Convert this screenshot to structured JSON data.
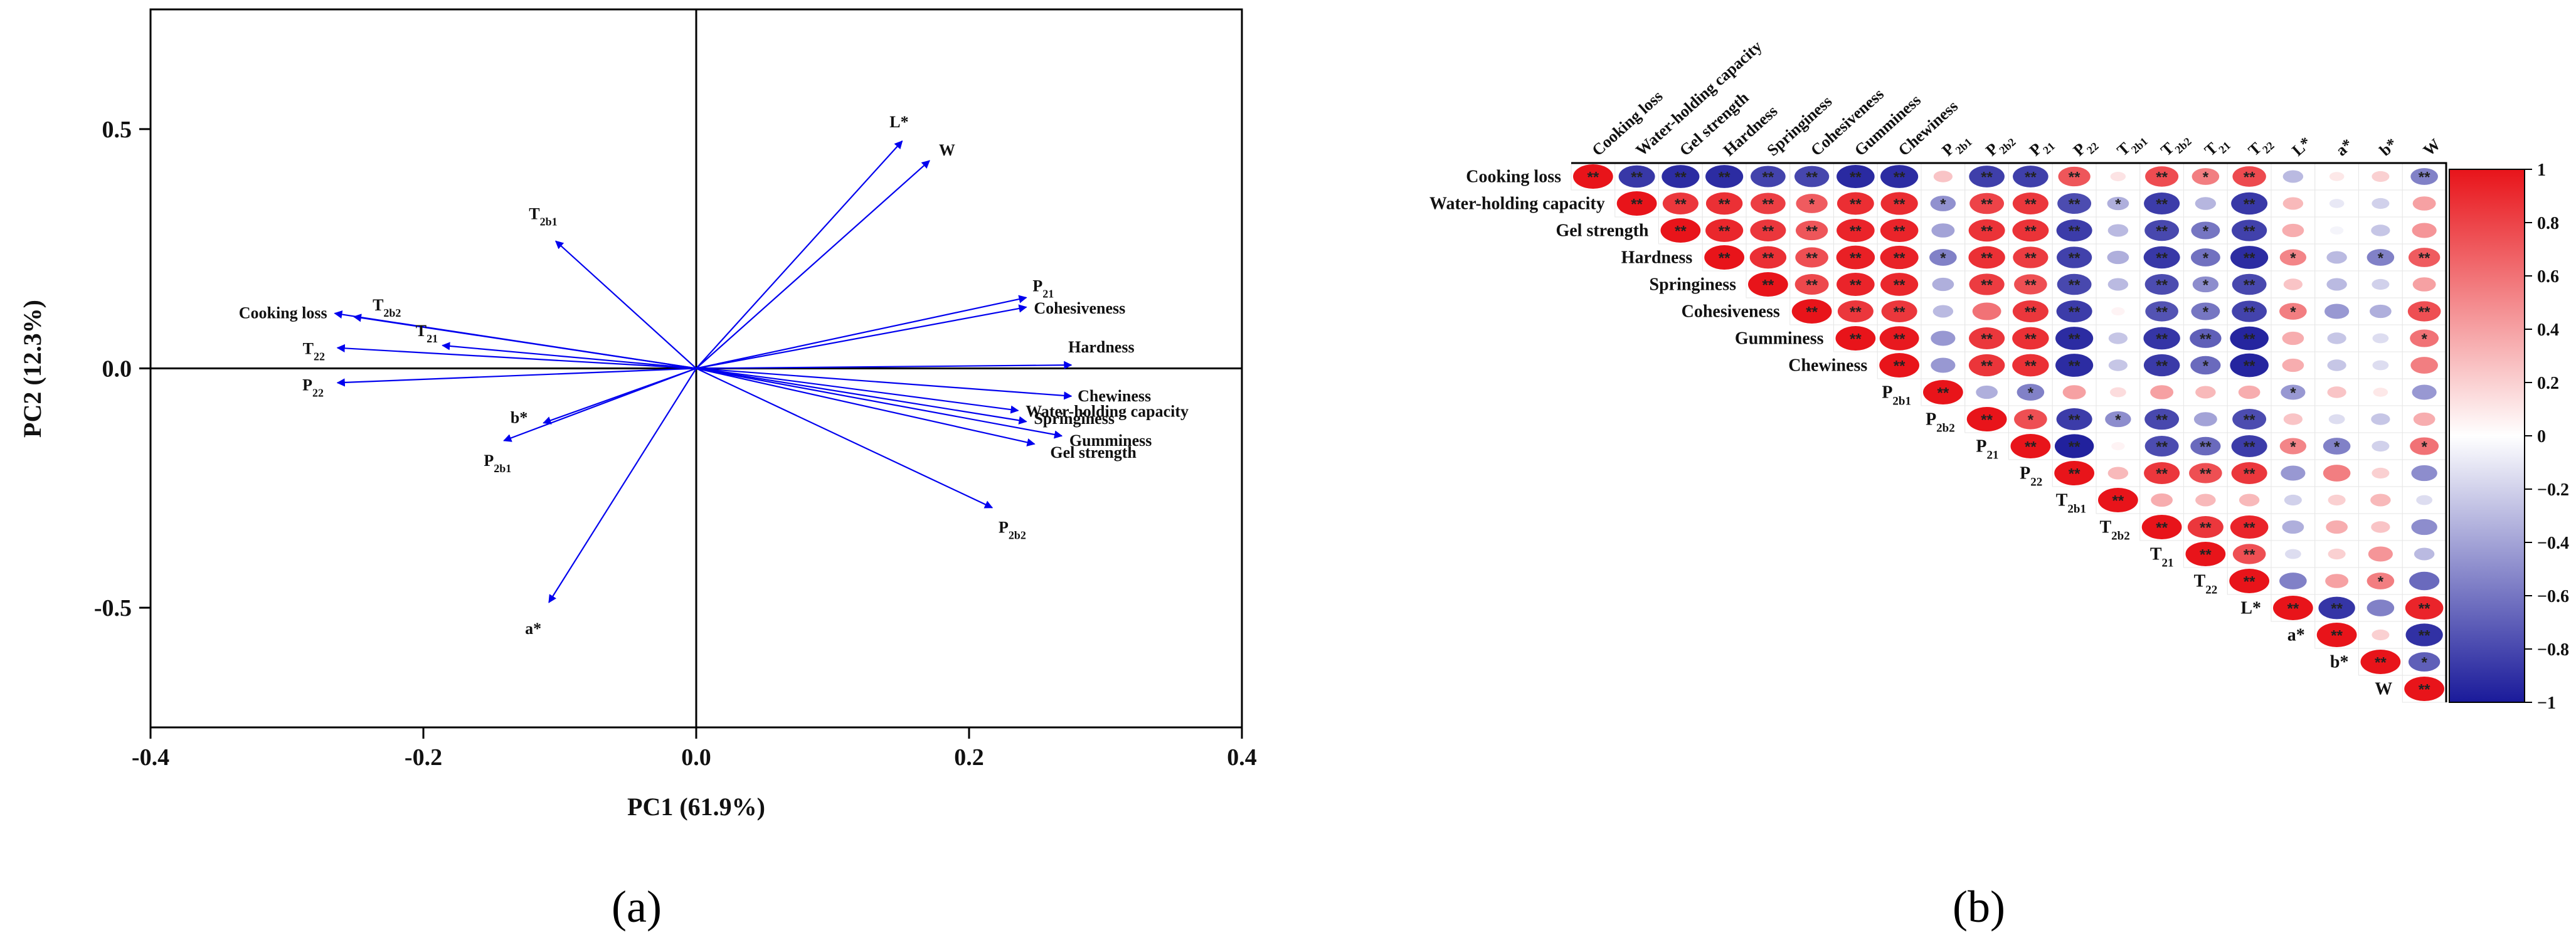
{
  "chart_data": [
    {
      "type": "biplot",
      "panel_label": "(a)",
      "xlabel": "PC1 (61.9%)",
      "ylabel": "PC2 (12.3%)",
      "xlim": [
        -0.4,
        0.4
      ],
      "ylim": [
        -0.75,
        0.75
      ],
      "xticks": [
        -0.4,
        -0.2,
        0.0,
        0.2,
        0.4
      ],
      "yticks": [
        -0.5,
        0.0,
        0.5
      ],
      "xtick_labels": [
        "-0.4",
        "-0.2",
        "0.0",
        "0.2",
        "0.4"
      ],
      "ytick_labels": [
        "-0.5",
        "0.0",
        "0.5"
      ],
      "arrow_color": "#0000ee",
      "vectors": [
        {
          "label": "L*",
          "base": "L*",
          "sub": "",
          "x": 0.151,
          "y": 0.475
        },
        {
          "label": "W",
          "base": "W",
          "sub": "",
          "x": 0.171,
          "y": 0.434
        },
        {
          "label": "T2b1",
          "base": "T",
          "sub": "2b1",
          "x": -0.103,
          "y": 0.266
        },
        {
          "label": "P21",
          "base": "P",
          "sub": "21",
          "x": 0.242,
          "y": 0.148
        },
        {
          "label": "Cohesiveness",
          "base": "Cohesiveness",
          "sub": "",
          "x": 0.242,
          "y": 0.128
        },
        {
          "label": "Hardness",
          "base": "Hardness",
          "sub": "",
          "x": 0.275,
          "y": 0.007
        },
        {
          "label": "Chewiness",
          "base": "Chewiness",
          "sub": "",
          "x": 0.275,
          "y": -0.058
        },
        {
          "label": "Water-holding capacity",
          "base": "Water-holding capacity",
          "sub": "",
          "x": 0.236,
          "y": -0.088
        },
        {
          "label": "Springiness",
          "base": "Springiness",
          "sub": "",
          "x": 0.242,
          "y": -0.111
        },
        {
          "label": "Gumminess",
          "base": "Gumminess",
          "sub": "",
          "x": 0.268,
          "y": -0.141
        },
        {
          "label": "Gel strength",
          "base": "Gel strength",
          "sub": "",
          "x": 0.248,
          "y": -0.158
        },
        {
          "label": "P2b2",
          "base": "P",
          "sub": "2b2",
          "x": 0.217,
          "y": -0.291
        },
        {
          "label": "Cooking loss",
          "base": "Cooking loss",
          "sub": "",
          "x": -0.265,
          "y": 0.115
        },
        {
          "label": "T2b2",
          "base": "T",
          "sub": "2b2",
          "x": -0.251,
          "y": 0.108
        },
        {
          "label": "T21",
          "base": "T",
          "sub": "21",
          "x": -0.186,
          "y": 0.048
        },
        {
          "label": "T22",
          "base": "T",
          "sub": "22",
          "x": -0.263,
          "y": 0.043
        },
        {
          "label": "P22",
          "base": "P",
          "sub": "22",
          "x": -0.263,
          "y": -0.03
        },
        {
          "label": "b*",
          "base": "b*",
          "sub": "",
          "x": -0.112,
          "y": -0.114
        },
        {
          "label": "P2b1",
          "base": "P",
          "sub": "2b1",
          "x": -0.141,
          "y": -0.151
        },
        {
          "label": "a*",
          "base": "a*",
          "sub": "",
          "x": -0.108,
          "y": -0.489
        }
      ]
    },
    {
      "type": "heatmap",
      "panel_label": "(b)",
      "variables": [
        {
          "base": "Cooking loss",
          "sub": ""
        },
        {
          "base": "Water-holding capacity",
          "sub": ""
        },
        {
          "base": "Gel strength",
          "sub": ""
        },
        {
          "base": "Hardness",
          "sub": ""
        },
        {
          "base": "Springiness",
          "sub": ""
        },
        {
          "base": "Cohesiveness",
          "sub": ""
        },
        {
          "base": "Gumminess",
          "sub": ""
        },
        {
          "base": "Chewiness",
          "sub": ""
        },
        {
          "base": "P",
          "sub": "2b1"
        },
        {
          "base": "P",
          "sub": "2b2"
        },
        {
          "base": "P",
          "sub": "21"
        },
        {
          "base": "P",
          "sub": "22"
        },
        {
          "base": "T",
          "sub": "2b1"
        },
        {
          "base": "T",
          "sub": "2b2"
        },
        {
          "base": "T",
          "sub": "21"
        },
        {
          "base": "T",
          "sub": "22"
        },
        {
          "base": "L*",
          "sub": ""
        },
        {
          "base": "a*",
          "sub": ""
        },
        {
          "base": "b*",
          "sub": ""
        },
        {
          "base": "W",
          "sub": ""
        }
      ],
      "colorbar": {
        "min": -1,
        "max": 1,
        "ticks": [
          1,
          0.8,
          0.6,
          0.4,
          0.2,
          0,
          -0.2,
          -0.4,
          -0.6,
          -0.8,
          -1
        ],
        "tick_labels": [
          "1",
          "0.8",
          "0.6",
          "0.4",
          "0.2",
          "0",
          "−0.2",
          "−0.4",
          "−0.6",
          "−0.8",
          "−1"
        ],
        "positive_color": "#e8141a",
        "negative_color": "#1a1a9a",
        "neutral_color": "#ffffff"
      },
      "rows": [
        {
          "values": [
            1,
            -0.87,
            -0.92,
            -0.92,
            -0.82,
            -0.81,
            -0.93,
            -0.92,
            0.25,
            -0.84,
            -0.84,
            0.72,
            0.12,
            0.76,
            0.55,
            0.77,
            -0.3,
            0.1,
            0.2,
            -0.55
          ],
          "sig": [
            "**",
            "**",
            "**",
            "**",
            "**",
            "**",
            "**",
            "**",
            "",
            "**",
            "**",
            "**",
            "",
            "**",
            "*",
            "**",
            "",
            "",
            "",
            "**"
          ]
        },
        {
          "values": [
            1,
            0.85,
            0.88,
            0.82,
            0.7,
            0.89,
            0.9,
            -0.48,
            0.8,
            0.85,
            -0.78,
            -0.35,
            -0.85,
            -0.32,
            -0.87,
            0.3,
            -0.1,
            -0.2,
            0.4
          ],
          "sig": [
            "**",
            "**",
            "**",
            "**",
            "*",
            "**",
            "**",
            "*",
            "**",
            "**",
            "**",
            "*",
            "**",
            "",
            "**",
            "",
            "",
            "",
            ""
          ]
        },
        {
          "values": [
            1,
            0.92,
            0.85,
            0.72,
            0.93,
            0.93,
            -0.4,
            0.87,
            0.87,
            -0.85,
            -0.3,
            -0.8,
            -0.6,
            -0.83,
            0.35,
            -0.05,
            -0.25,
            0.45
          ],
          "sig": [
            "**",
            "**",
            "**",
            "**",
            "**",
            "**",
            "",
            "**",
            "**",
            "**",
            "",
            "**",
            "*",
            "**",
            "",
            "",
            "",
            ""
          ]
        },
        {
          "values": [
            1,
            0.88,
            0.75,
            0.95,
            0.94,
            -0.55,
            0.88,
            0.83,
            -0.83,
            -0.35,
            -0.87,
            -0.62,
            -0.92,
            0.52,
            -0.3,
            -0.55,
            0.7
          ],
          "sig": [
            "**",
            "**",
            "**",
            "**",
            "**",
            "*",
            "**",
            "**",
            "**",
            "",
            "**",
            "*",
            "**",
            "*",
            "",
            "*",
            "**"
          ]
        },
        {
          "values": [
            1,
            0.78,
            0.93,
            0.92,
            -0.35,
            0.83,
            0.75,
            -0.8,
            -0.3,
            -0.78,
            -0.5,
            -0.8,
            0.25,
            -0.3,
            -0.2,
            0.4
          ],
          "sig": [
            "**",
            "**",
            "**",
            "**",
            "",
            "**",
            "**",
            "**",
            "",
            "**",
            "*",
            "**",
            "",
            "",
            "",
            ""
          ]
        },
        {
          "values": [
            1,
            0.85,
            0.85,
            -0.3,
            0.6,
            0.85,
            -0.85,
            0.05,
            -0.75,
            -0.6,
            -0.82,
            0.55,
            -0.45,
            -0.35,
            0.75
          ],
          "sig": [
            "**",
            "**",
            "**",
            "",
            "",
            "**",
            "**",
            "",
            "**",
            "*",
            "**",
            "*",
            "",
            "",
            "**"
          ]
        },
        {
          "values": [
            1,
            0.98,
            -0.45,
            0.85,
            0.88,
            -0.92,
            -0.25,
            -0.88,
            -0.7,
            -0.95,
            0.35,
            -0.25,
            -0.15,
            0.6
          ],
          "sig": [
            "**",
            "**",
            "",
            "**",
            "**",
            "**",
            "",
            "**",
            "**",
            "**",
            "",
            "",
            "",
            "*"
          ]
        },
        {
          "values": [
            1,
            -0.45,
            0.86,
            0.88,
            -0.92,
            -0.25,
            -0.86,
            -0.65,
            -0.95,
            0.35,
            -0.25,
            -0.15,
            0.55
          ],
          "sig": [
            "**",
            "",
            "**",
            "**",
            "**",
            "",
            "**",
            "*",
            "**",
            "",
            "",
            "",
            ""
          ]
        },
        {
          "values": [
            1,
            -0.35,
            -0.55,
            0.4,
            0.15,
            0.4,
            0.3,
            0.35,
            -0.45,
            0.25,
            0.1,
            -0.45
          ],
          "sig": [
            "**",
            "",
            "*",
            "",
            "",
            "",
            "",
            "",
            "*",
            "",
            "",
            ""
          ]
        },
        {
          "values": [
            1,
            0.75,
            -0.85,
            -0.5,
            -0.8,
            -0.4,
            -0.78,
            0.25,
            -0.15,
            -0.25,
            0.35
          ],
          "sig": [
            "**",
            "*",
            "**",
            "*",
            "**",
            "",
            "**",
            "",
            "",
            "",
            ""
          ]
        },
        {
          "values": [
            1,
            -0.97,
            0.05,
            -0.78,
            -0.65,
            -0.85,
            0.52,
            -0.55,
            -0.2,
            0.6
          ],
          "sig": [
            "**",
            "**",
            "",
            "**",
            "**",
            "**",
            "*",
            "*",
            "",
            "*"
          ]
        },
        {
          "values": [
            1,
            0.3,
            0.85,
            0.75,
            0.85,
            -0.45,
            0.55,
            0.2,
            -0.5
          ],
          "sig": [
            "**",
            "",
            "**",
            "**",
            "**",
            "",
            "",
            "",
            ""
          ]
        },
        {
          "values": [
            1,
            0.35,
            0.3,
            0.3,
            -0.2,
            0.2,
            0.3,
            -0.15
          ],
          "sig": [
            "**",
            "",
            "",
            "",
            "",
            "",
            "",
            ""
          ]
        },
        {
          "values": [
            1,
            0.85,
            0.93,
            -0.35,
            0.35,
            0.25,
            -0.5
          ],
          "sig": [
            "**",
            "**",
            "**",
            "",
            "",
            "",
            ""
          ]
        },
        {
          "values": [
            1,
            0.75,
            -0.15,
            0.2,
            0.45,
            -0.3
          ],
          "sig": [
            "**",
            "**",
            "",
            "",
            "",
            ""
          ]
        },
        {
          "values": [
            1,
            -0.55,
            0.4,
            0.55,
            -0.65
          ],
          "sig": [
            "**",
            "",
            "",
            "*"
          ]
        },
        {
          "values": [
            1,
            -0.88,
            -0.55,
            0.93
          ],
          "sig": [
            "**",
            "**",
            "",
            "**"
          ]
        },
        {
          "values": [
            1,
            0.2,
            -0.9
          ],
          "sig": [
            "**",
            "",
            "**"
          ]
        },
        {
          "values": [
            1,
            -0.7
          ],
          "sig": [
            "**",
            "*"
          ]
        },
        {
          "values": [
            1
          ],
          "sig": [
            "**"
          ]
        }
      ]
    }
  ]
}
